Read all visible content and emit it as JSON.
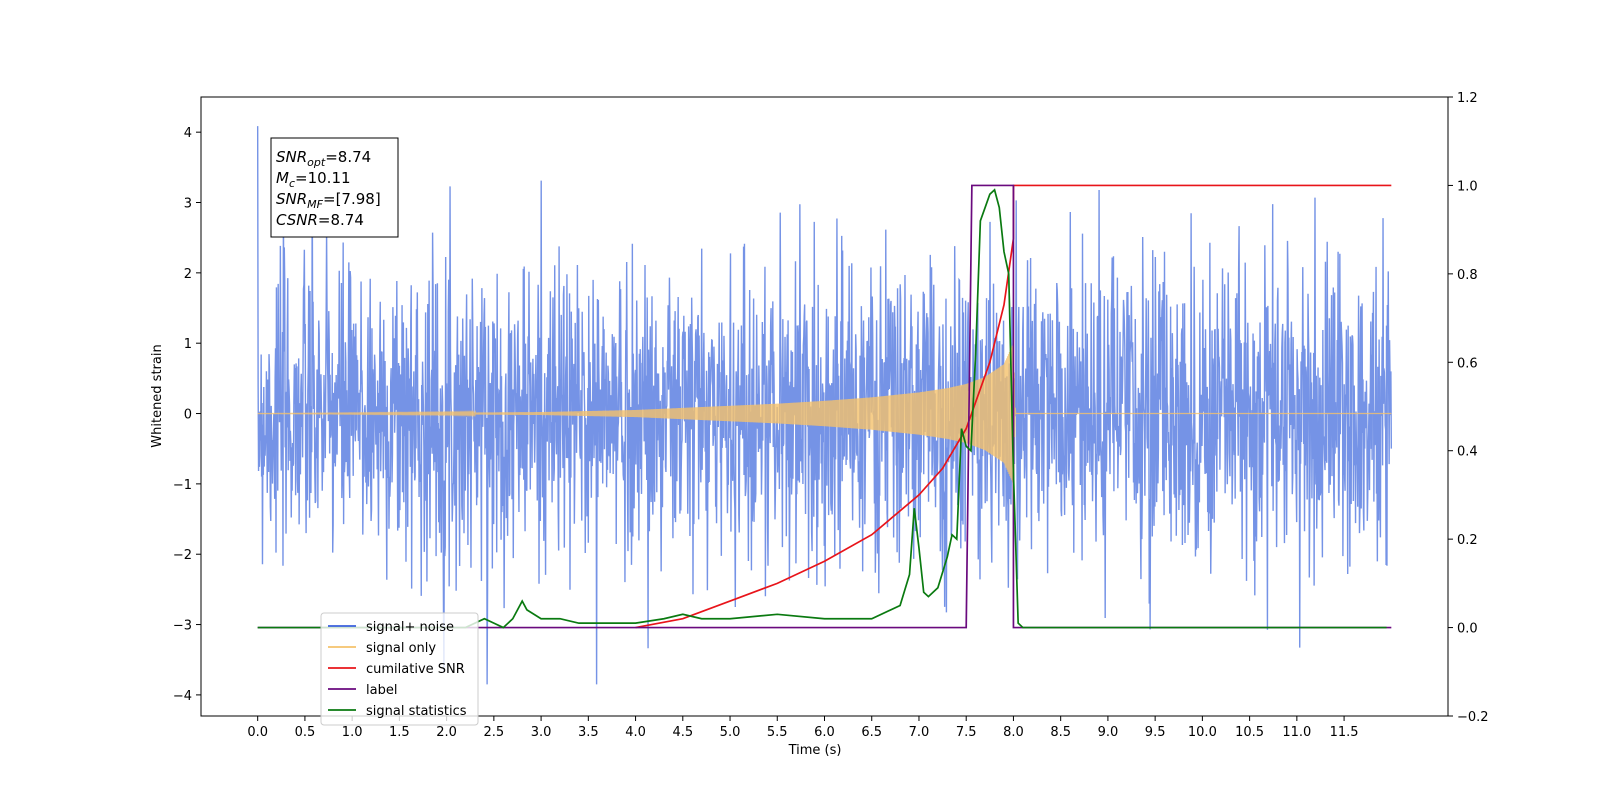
{
  "chart_data": {
    "type": "line",
    "title": "",
    "xlabel": "Time (s)",
    "ylabel": "Whitened strain",
    "y2label": "",
    "xlim": [
      -0.6,
      12.6
    ],
    "ylim": [
      -4.3,
      4.5
    ],
    "y2lim": [
      -0.2,
      1.2
    ],
    "grid": false,
    "legend_position": "lower-left",
    "x_ticks": [
      "0.0",
      "0.5",
      "1.0",
      "1.5",
      "2.0",
      "2.5",
      "3.0",
      "3.5",
      "4.0",
      "4.5",
      "5.0",
      "5.5",
      "6.0",
      "6.5",
      "7.0",
      "7.5",
      "8.0",
      "8.5",
      "9.0",
      "9.5",
      "10.0",
      "10.5",
      "11.0",
      "11.5"
    ],
    "y_ticks": [
      "4",
      "3",
      "2",
      "1",
      "0",
      "−1",
      "−2",
      "−3",
      "−4"
    ],
    "y2_ticks": [
      "1.2",
      "1.0",
      "0.8",
      "0.6",
      "0.4",
      "0.2",
      "0.0",
      "−0.2"
    ],
    "annotation": {
      "lines": [
        {
          "base": "SNR",
          "sub": "opt",
          "value": "=8.74"
        },
        {
          "base": "M",
          "sub": "c",
          "value": "=10.11"
        },
        {
          "base": "SNR",
          "sub": "MF",
          "value": "=[7.98]"
        },
        {
          "base": "CSNR",
          "sub": "",
          "value": "=8.74"
        }
      ]
    },
    "legend": [
      {
        "label": "signal+ noise",
        "color": "#3a5fdc"
      },
      {
        "label": "signal only",
        "color": "#f5c26b"
      },
      {
        "label": "cumilative SNR",
        "color": "#e8141a"
      },
      {
        "label": "label",
        "color": "#6a0a7e"
      },
      {
        "label": "signal statistics",
        "color": "#0a7a10"
      }
    ],
    "series": [
      {
        "name": "signal+ noise",
        "axis": "left",
        "color": "#7593e6",
        "kind": "noise_band",
        "x_range": [
          0.0,
          12.0
        ],
        "envelope_typical": [
          -2.0,
          2.2
        ],
        "peak_range": [
          -3.85,
          4.12
        ]
      },
      {
        "name": "signal only",
        "axis": "left",
        "color": "#f5c26b",
        "kind": "chirp_envelope",
        "x": [
          0.0,
          2.0,
          3.0,
          4.0,
          4.5,
          5.0,
          5.5,
          6.0,
          6.5,
          7.0,
          7.3,
          7.5,
          7.7,
          7.9,
          8.0,
          8.02,
          12.0
        ],
        "amplitude": [
          0.0,
          0.01,
          0.02,
          0.05,
          0.08,
          0.11,
          0.14,
          0.18,
          0.23,
          0.3,
          0.36,
          0.42,
          0.52,
          0.7,
          1.0,
          0.0,
          0.0
        ]
      },
      {
        "name": "cumilative SNR",
        "axis": "right",
        "color": "#e8141a",
        "x": [
          4.0,
          4.5,
          5.0,
          5.5,
          6.0,
          6.5,
          7.0,
          7.25,
          7.5,
          7.75,
          7.9,
          8.0,
          8.0,
          12.0
        ],
        "y": [
          0.0,
          0.02,
          0.06,
          0.1,
          0.15,
          0.21,
          0.3,
          0.36,
          0.45,
          0.6,
          0.73,
          0.88,
          1.0,
          1.0
        ]
      },
      {
        "name": "label",
        "axis": "right",
        "color": "#6a0a7e",
        "x": [
          0.0,
          7.5,
          7.56,
          8.0,
          8.0,
          8.05,
          12.0
        ],
        "y": [
          0.0,
          0.0,
          1.0,
          1.0,
          0.0,
          0.0,
          0.0
        ]
      },
      {
        "name": "signal statistics",
        "axis": "right",
        "color": "#0a7a10",
        "x": [
          0.0,
          2.2,
          2.4,
          2.5,
          2.6,
          2.7,
          2.8,
          2.85,
          3.0,
          3.2,
          3.4,
          3.6,
          4.0,
          4.3,
          4.5,
          4.7,
          5.0,
          5.5,
          6.0,
          6.5,
          6.8,
          6.9,
          6.95,
          7.0,
          7.05,
          7.1,
          7.2,
          7.3,
          7.35,
          7.4,
          7.45,
          7.5,
          7.55,
          7.6,
          7.65,
          7.7,
          7.75,
          7.8,
          7.85,
          7.9,
          7.95,
          8.0,
          8.05,
          8.1,
          8.2,
          9.0,
          10.0,
          11.0,
          11.95
        ],
        "y": [
          0.0,
          0.0,
          0.02,
          0.01,
          0.0,
          0.02,
          0.06,
          0.04,
          0.02,
          0.02,
          0.01,
          0.01,
          0.01,
          0.02,
          0.03,
          0.02,
          0.02,
          0.03,
          0.02,
          0.02,
          0.05,
          0.12,
          0.27,
          0.18,
          0.08,
          0.07,
          0.09,
          0.16,
          0.21,
          0.2,
          0.45,
          0.41,
          0.4,
          0.62,
          0.92,
          0.95,
          0.98,
          0.99,
          0.95,
          0.85,
          0.8,
          0.35,
          0.01,
          0.0,
          0.0,
          0.0,
          0.0,
          0.0,
          0.0
        ]
      }
    ]
  }
}
